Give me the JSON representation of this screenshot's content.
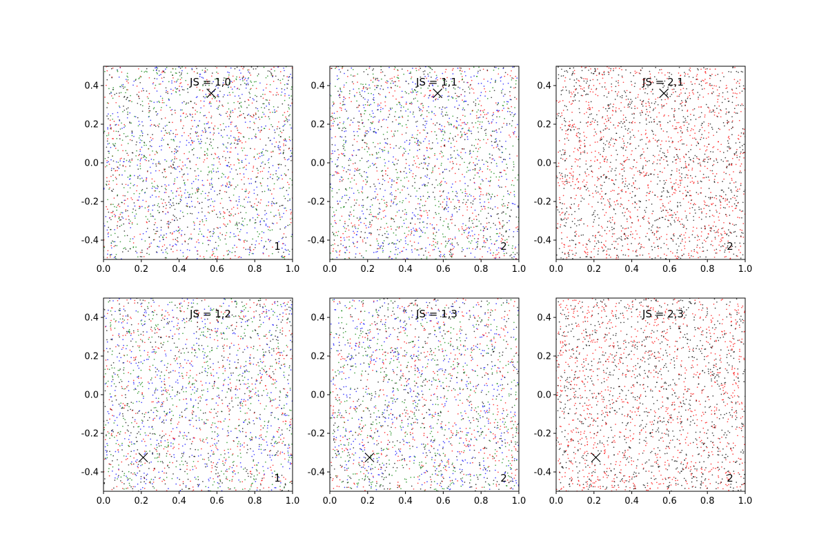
{
  "figure": {
    "xlim": [
      0.0,
      1.0
    ],
    "ylim": [
      -0.5,
      0.5
    ],
    "xticks": [
      "0.0",
      "0.2",
      "0.4",
      "0.6",
      "0.8",
      "1.0"
    ],
    "yticks": [
      "0.4",
      "0.2",
      "0.0",
      "-0.2",
      "-0.4"
    ],
    "ytick_values": [
      0.4,
      0.2,
      0.0,
      -0.2,
      -0.4
    ],
    "xtick_values": [
      0.0,
      0.2,
      0.4,
      0.6,
      0.8,
      1.0
    ]
  },
  "chart_data": [
    {
      "type": "scatter",
      "title": "JS = 1,0",
      "corner_label": "1",
      "marker": {
        "symbol": "x",
        "x": 0.57,
        "y": 0.36
      },
      "series_colors": [
        "#0000ff",
        "#ff0000",
        "#008000",
        "#000000"
      ],
      "points_per_series": 550,
      "seed": 11,
      "xlim": [
        0.0,
        1.0
      ],
      "ylim": [
        -0.5,
        0.5
      ]
    },
    {
      "type": "scatter",
      "title": "JS = 1,1",
      "corner_label": "2",
      "marker": {
        "symbol": "x",
        "x": 0.57,
        "y": 0.36
      },
      "series_colors": [
        "#0000ff",
        "#ff0000",
        "#008000",
        "#000000"
      ],
      "points_per_series": 550,
      "seed": 23,
      "xlim": [
        0.0,
        1.0
      ],
      "ylim": [
        -0.5,
        0.5
      ]
    },
    {
      "type": "scatter",
      "title": "JS = 2,1",
      "corner_label": "2",
      "marker": {
        "symbol": "x",
        "x": 0.57,
        "y": 0.36
      },
      "series_colors": [
        "#ff0000",
        "#000000"
      ],
      "points_per_series": 1100,
      "seed": 37,
      "xlim": [
        0.0,
        1.0
      ],
      "ylim": [
        -0.5,
        0.5
      ]
    },
    {
      "type": "scatter",
      "title": "JS = 1,2",
      "corner_label": "1",
      "marker": {
        "symbol": "x",
        "x": 0.21,
        "y": -0.325
      },
      "series_colors": [
        "#0000ff",
        "#ff0000",
        "#008000",
        "#000000"
      ],
      "points_per_series": 550,
      "seed": 41,
      "xlim": [
        0.0,
        1.0
      ],
      "ylim": [
        -0.5,
        0.5
      ]
    },
    {
      "type": "scatter",
      "title": "JS = 1,3",
      "corner_label": "2",
      "marker": {
        "symbol": "x",
        "x": 0.21,
        "y": -0.325
      },
      "series_colors": [
        "#0000ff",
        "#ff0000",
        "#008000",
        "#000000"
      ],
      "points_per_series": 550,
      "seed": 53,
      "xlim": [
        0.0,
        1.0
      ],
      "ylim": [
        -0.5,
        0.5
      ]
    },
    {
      "type": "scatter",
      "title": "JS = 2,3",
      "corner_label": "2",
      "marker": {
        "symbol": "x",
        "x": 0.21,
        "y": -0.325
      },
      "series_colors": [
        "#ff0000",
        "#000000"
      ],
      "points_per_series": 1100,
      "seed": 67,
      "xlim": [
        0.0,
        1.0
      ],
      "ylim": [
        -0.5,
        0.5
      ]
    }
  ]
}
